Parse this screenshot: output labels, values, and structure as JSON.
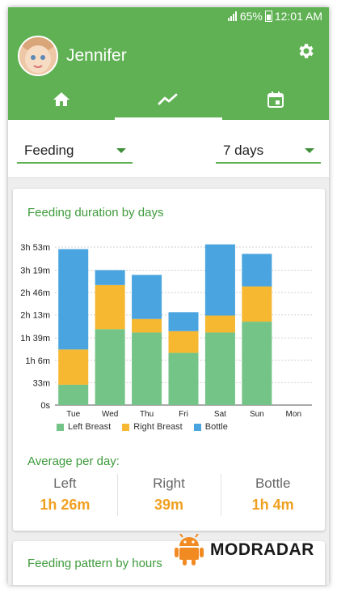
{
  "status": {
    "battery": "65%",
    "time": "12:01 AM"
  },
  "header": {
    "user_name": "Jennifer"
  },
  "tabs": [
    {
      "icon": "home-icon"
    },
    {
      "icon": "trend-icon",
      "active": true
    },
    {
      "icon": "calendar-icon"
    }
  ],
  "filters": {
    "type": "Feeding",
    "period": "7 days"
  },
  "chart_card": {
    "title": "Feeding duration by days"
  },
  "chart_data": {
    "type": "bar",
    "stacked": true,
    "categories": [
      "Tue",
      "Wed",
      "Thu",
      "Fri",
      "Sat",
      "Sun",
      "Mon"
    ],
    "series": [
      {
        "name": "Left Breast",
        "color": "#74c487",
        "values": [
          30,
          112,
          107,
          77,
          107,
          123,
          0
        ]
      },
      {
        "name": "Right Breast",
        "color": "#f6b731",
        "values": [
          52,
          65,
          20,
          32,
          25,
          52,
          0
        ]
      },
      {
        "name": "Bottle",
        "color": "#4aa4e0",
        "values": [
          148,
          22,
          65,
          28,
          105,
          48,
          0
        ]
      }
    ],
    "yticks": [
      "0s",
      "33m",
      "1h 6m",
      "1h 39m",
      "2h 13m",
      "2h 46m",
      "3h 19m",
      "3h 53m"
    ],
    "ytick_values": [
      0,
      33,
      66,
      99,
      133,
      166,
      199,
      233
    ],
    "ylim": [
      0,
      233
    ],
    "grid": true,
    "legend_position": "bottom"
  },
  "average": {
    "title": "Average per day:",
    "items": [
      {
        "label": "Left",
        "value": "1h 26m"
      },
      {
        "label": "Right",
        "value": "39m"
      },
      {
        "label": "Bottle",
        "value": "1h 4m"
      }
    ]
  },
  "pattern_card": {
    "title": "Feeding pattern by hours"
  },
  "watermark": {
    "text": "MODRADAR"
  },
  "colors": {
    "primary": "#5fb153",
    "accent": "#f0a020",
    "title": "#3d9a3b"
  }
}
